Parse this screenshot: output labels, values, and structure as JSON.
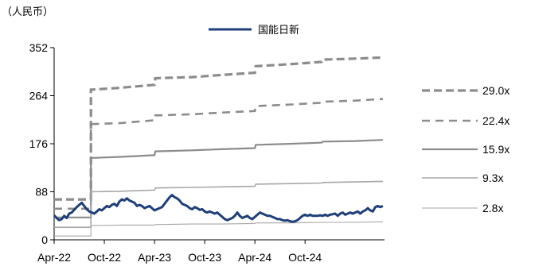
{
  "chart_data": {
    "type": "line",
    "unit_label": "（人民币）",
    "y_ticks": [
      0,
      88,
      176,
      264,
      352
    ],
    "ylim": [
      0,
      352
    ],
    "x_ticks": [
      {
        "label": "Apr-22",
        "t": 0
      },
      {
        "label": "Oct-22",
        "t": 6
      },
      {
        "label": "Apr-23",
        "t": 12
      },
      {
        "label": "Oct-23",
        "t": 18
      },
      {
        "label": "Apr-24",
        "t": 24
      },
      {
        "label": "Oct-24",
        "t": 30
      }
    ],
    "xlim": [
      0,
      39.5
    ],
    "grid": false,
    "price_series": {
      "name": "国能日新",
      "color": "#1f3f7a",
      "points": [
        [
          0.0,
          45
        ],
        [
          0.3,
          40
        ],
        [
          0.6,
          36
        ],
        [
          0.9,
          38
        ],
        [
          1.2,
          44
        ],
        [
          1.5,
          40
        ],
        [
          1.8,
          48
        ],
        [
          2.1,
          50
        ],
        [
          2.4,
          55
        ],
        [
          2.7,
          60
        ],
        [
          3.0,
          64
        ],
        [
          3.3,
          68
        ],
        [
          3.6,
          62
        ],
        [
          3.9,
          56
        ],
        [
          4.2,
          52
        ],
        [
          4.5,
          50
        ],
        [
          4.8,
          48
        ],
        [
          5.1,
          52
        ],
        [
          5.4,
          56
        ],
        [
          5.7,
          54
        ],
        [
          6.0,
          58
        ],
        [
          6.3,
          62
        ],
        [
          6.6,
          60
        ],
        [
          6.9,
          64
        ],
        [
          7.2,
          66
        ],
        [
          7.5,
          62
        ],
        [
          7.8,
          70
        ],
        [
          8.1,
          74
        ],
        [
          8.4,
          72
        ],
        [
          8.7,
          76
        ],
        [
          9.0,
          72
        ],
        [
          9.3,
          70
        ],
        [
          9.6,
          68
        ],
        [
          9.9,
          62
        ],
        [
          10.2,
          64
        ],
        [
          10.5,
          62
        ],
        [
          10.8,
          58
        ],
        [
          11.1,
          60
        ],
        [
          11.4,
          62
        ],
        [
          11.7,
          58
        ],
        [
          12.0,
          54
        ],
        [
          12.3,
          56
        ],
        [
          12.6,
          58
        ],
        [
          12.9,
          60
        ],
        [
          13.2,
          66
        ],
        [
          13.5,
          72
        ],
        [
          13.8,
          78
        ],
        [
          14.1,
          82
        ],
        [
          14.4,
          78
        ],
        [
          14.7,
          76
        ],
        [
          15.0,
          72
        ],
        [
          15.3,
          66
        ],
        [
          15.6,
          64
        ],
        [
          15.9,
          62
        ],
        [
          16.2,
          58
        ],
        [
          16.5,
          56
        ],
        [
          16.8,
          60
        ],
        [
          17.1,
          58
        ],
        [
          17.4,
          55
        ],
        [
          17.7,
          56
        ],
        [
          18.0,
          52
        ],
        [
          18.3,
          50
        ],
        [
          18.6,
          52
        ],
        [
          18.9,
          50
        ],
        [
          19.2,
          48
        ],
        [
          19.5,
          50
        ],
        [
          19.8,
          46
        ],
        [
          20.1,
          42
        ],
        [
          20.4,
          38
        ],
        [
          20.7,
          36
        ],
        [
          21.0,
          38
        ],
        [
          21.3,
          40
        ],
        [
          21.6,
          44
        ],
        [
          21.9,
          50
        ],
        [
          22.2,
          44
        ],
        [
          22.5,
          40
        ],
        [
          22.8,
          42
        ],
        [
          23.1,
          44
        ],
        [
          23.4,
          40
        ],
        [
          23.7,
          38
        ],
        [
          24.0,
          42
        ],
        [
          24.3,
          46
        ],
        [
          24.6,
          50
        ],
        [
          24.9,
          48
        ],
        [
          25.2,
          46
        ],
        [
          25.5,
          44
        ],
        [
          25.8,
          44
        ],
        [
          26.1,
          42
        ],
        [
          26.4,
          40
        ],
        [
          26.7,
          38
        ],
        [
          27.0,
          38
        ],
        [
          27.3,
          36
        ],
        [
          27.6,
          35
        ],
        [
          27.9,
          36
        ],
        [
          28.2,
          34
        ],
        [
          28.5,
          33
        ],
        [
          28.8,
          34
        ],
        [
          29.1,
          36
        ],
        [
          29.4,
          40
        ],
        [
          29.7,
          44
        ],
        [
          30.0,
          46
        ],
        [
          30.3,
          44
        ],
        [
          30.6,
          46
        ],
        [
          30.9,
          44
        ],
        [
          31.2,
          44
        ],
        [
          31.5,
          44
        ],
        [
          31.8,
          45
        ],
        [
          32.1,
          44
        ],
        [
          32.4,
          46
        ],
        [
          32.7,
          44
        ],
        [
          33.0,
          46
        ],
        [
          33.3,
          47
        ],
        [
          33.6,
          48
        ],
        [
          33.9,
          44
        ],
        [
          34.2,
          48
        ],
        [
          34.5,
          50
        ],
        [
          34.8,
          46
        ],
        [
          35.1,
          48
        ],
        [
          35.4,
          50
        ],
        [
          35.7,
          48
        ],
        [
          36.0,
          50
        ],
        [
          36.3,
          52
        ],
        [
          36.6,
          48
        ],
        [
          36.9,
          52
        ],
        [
          37.2,
          54
        ],
        [
          37.5,
          58
        ],
        [
          37.8,
          54
        ],
        [
          38.1,
          52
        ],
        [
          38.4,
          60
        ],
        [
          38.7,
          62
        ],
        [
          39.0,
          60
        ],
        [
          39.3,
          62
        ]
      ]
    },
    "pe_bands": [
      {
        "name": "29.0x",
        "color": "#8c8c8c",
        "style": "dashed-thick",
        "points": [
          [
            0,
            74
          ],
          [
            4.4,
            74
          ],
          [
            4.4,
            275
          ],
          [
            7.5,
            278
          ],
          [
            12.0,
            284
          ],
          [
            12.1,
            296
          ],
          [
            16.5,
            298
          ],
          [
            20.0,
            302
          ],
          [
            24.0,
            306
          ],
          [
            24.1,
            318
          ],
          [
            28.5,
            322
          ],
          [
            32.0,
            326
          ],
          [
            32.1,
            330
          ],
          [
            36.0,
            332
          ],
          [
            39.3,
            334
          ]
        ]
      },
      {
        "name": "22.4x",
        "color": "#8c8c8c",
        "style": "dashed",
        "points": [
          [
            0,
            57
          ],
          [
            4.4,
            57
          ],
          [
            4.4,
            212
          ],
          [
            8.0,
            214
          ],
          [
            12.0,
            219
          ],
          [
            12.1,
            228
          ],
          [
            16.5,
            230
          ],
          [
            20.0,
            233
          ],
          [
            24.0,
            236
          ],
          [
            24.1,
            245
          ],
          [
            28.5,
            248
          ],
          [
            32.0,
            251
          ],
          [
            32.1,
            253
          ],
          [
            36.0,
            255
          ],
          [
            39.3,
            258
          ]
        ]
      },
      {
        "name": "15.9x",
        "color": "#8c8c8c",
        "style": "solid-thick",
        "points": [
          [
            0,
            41
          ],
          [
            4.4,
            41
          ],
          [
            4.4,
            150
          ],
          [
            8.0,
            152
          ],
          [
            12.0,
            155
          ],
          [
            12.1,
            162
          ],
          [
            16.5,
            164
          ],
          [
            20.0,
            166
          ],
          [
            24.0,
            168
          ],
          [
            24.1,
            174
          ],
          [
            28.5,
            176
          ],
          [
            32.0,
            178
          ],
          [
            32.1,
            180
          ],
          [
            36.0,
            181
          ],
          [
            39.3,
            183
          ]
        ]
      },
      {
        "name": "9.3x",
        "color": "#a6a6a6",
        "style": "solid",
        "points": [
          [
            0,
            23
          ],
          [
            4.4,
            23
          ],
          [
            4.4,
            88
          ],
          [
            8.0,
            89
          ],
          [
            12.0,
            91
          ],
          [
            12.1,
            95
          ],
          [
            16.5,
            96
          ],
          [
            20.0,
            97
          ],
          [
            24.0,
            98
          ],
          [
            24.1,
            102
          ],
          [
            28.5,
            103
          ],
          [
            32.0,
            104
          ],
          [
            32.1,
            105
          ],
          [
            36.0,
            106
          ],
          [
            39.3,
            107
          ]
        ]
      },
      {
        "name": "2.8x",
        "color": "#a6a6a6",
        "style": "solid-thin",
        "points": [
          [
            0,
            7
          ],
          [
            4.4,
            7
          ],
          [
            4.4,
            26
          ],
          [
            8.0,
            27
          ],
          [
            12.0,
            27
          ],
          [
            12.1,
            28
          ],
          [
            16.5,
            29
          ],
          [
            20.0,
            29
          ],
          [
            24.0,
            30
          ],
          [
            24.1,
            31
          ],
          [
            28.5,
            31
          ],
          [
            32.0,
            32
          ],
          [
            32.1,
            32
          ],
          [
            36.0,
            32
          ],
          [
            39.3,
            33
          ]
        ]
      }
    ]
  }
}
